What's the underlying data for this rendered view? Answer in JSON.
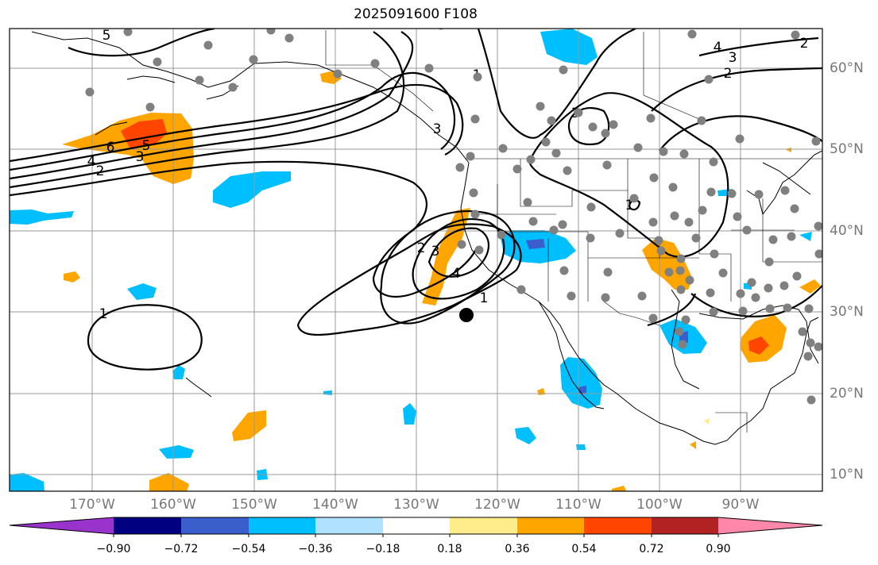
{
  "title": "2025091600 F108",
  "lon_ticks": [
    "170°W",
    "160°W",
    "150°W",
    "140°W",
    "130°W",
    "120°W",
    "110°W",
    "100°W",
    "90°W"
  ],
  "lat_ticks": [
    "60°N",
    "50°N",
    "40°N",
    "30°N",
    "20°N",
    "10°N"
  ],
  "colorbar": {
    "labels": [
      "−0.90",
      "−0.72",
      "−0.54",
      "−0.36",
      "−0.18",
      "0.18",
      "0.36",
      "0.54",
      "0.72",
      "0.90"
    ],
    "colors": [
      "#9933cc",
      "#000080",
      "#3a5fcd",
      "#00bfff",
      "#b0e2ff",
      "#ffffff",
      "#ffec8b",
      "#ffa500",
      "#ff4500",
      "#b22222",
      "#ff88aa"
    ]
  },
  "contour_labels": [
    "5",
    "4",
    "3",
    "2",
    "6",
    "5",
    "3",
    "4",
    "2",
    "3",
    "2",
    "4",
    "2",
    "3",
    "1",
    "1",
    "3",
    "1",
    "1"
  ],
  "colors": {
    "grid": "#999999",
    "contour": "#000000",
    "station": "#808080",
    "tick": "#777777"
  }
}
